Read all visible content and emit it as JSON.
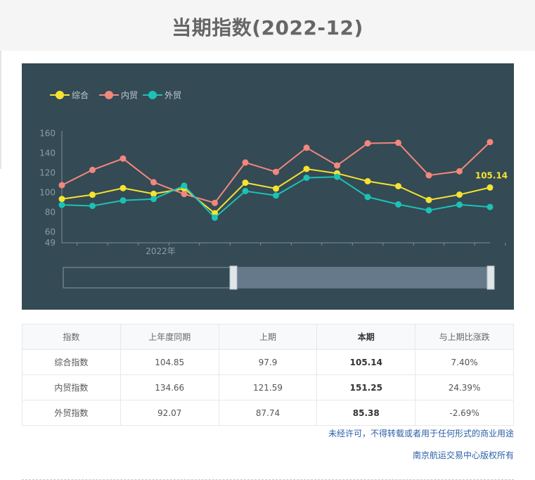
{
  "page": {
    "title": "当期指数(2022-12)"
  },
  "chart_data": {
    "type": "line",
    "legend": [
      "综合",
      "内贸",
      "外贸"
    ],
    "legend_position": "top-left",
    "series": [
      {
        "name": "综合",
        "color": "#f5e330",
        "values": [
          93.5,
          97.8,
          104.5,
          98.7,
          104.0,
          79.0,
          110.0,
          104.0,
          124.0,
          119.5,
          111.5,
          106.5,
          92.5,
          97.9,
          105.14
        ]
      },
      {
        "name": "内贸",
        "color": "#f2877e",
        "values": [
          107.5,
          123.0,
          134.5,
          110.5,
          98.5,
          89.5,
          130.5,
          121.0,
          145.5,
          127.5,
          150.0,
          150.5,
          117.5,
          121.59,
          151.25
        ]
      },
      {
        "name": "外贸",
        "color": "#1bc2b5",
        "values": [
          87.5,
          86.5,
          92.0,
          93.5,
          107.0,
          74.5,
          101.5,
          97.0,
          115.0,
          116.0,
          95.5,
          88.0,
          82.0,
          87.74,
          85.38
        ]
      }
    ],
    "y_ticks": [
      "160",
      "140",
      "120",
      "100",
      "80",
      "60",
      "49"
    ],
    "x_label_text": "2022年",
    "end_label": "105.14",
    "ylim": [
      49,
      160
    ]
  },
  "table": {
    "headers": [
      "指数",
      "上年度同期",
      "上期",
      "本期",
      "与上期比涨跌"
    ],
    "rows": [
      [
        "综合指数",
        "104.85",
        "97.9",
        "105.14",
        "7.40%"
      ],
      [
        "内贸指数",
        "134.66",
        "121.59",
        "151.25",
        "24.39%"
      ],
      [
        "外贸指数",
        "92.07",
        "87.74",
        "85.38",
        "-2.69%"
      ]
    ]
  },
  "footer": {
    "notice": "未经许可，不得转载或者用于任何形式的商业用途",
    "copyright": "南京航运交易中心版权所有"
  }
}
